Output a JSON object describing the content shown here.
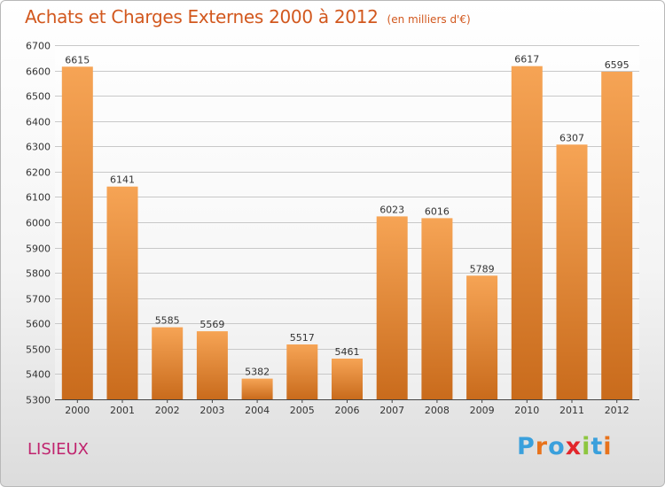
{
  "header": {
    "title": "Achats et Charges Externes 2000 à 2012",
    "unit": "(en milliers d'€)"
  },
  "footer": {
    "city": "LISIEUX",
    "brand": "Proxiti",
    "brand_colors": [
      "#3aa0dc",
      "#e8731c",
      "#3aa0dc",
      "#e2262b",
      "#8dc63f",
      "#3aa0dc",
      "#e8731c"
    ]
  },
  "colors": {
    "bar_light": "#f6a455",
    "bar_dark": "#c96b1c",
    "title": "#d2581e",
    "city": "#c0246e"
  },
  "chart_data": {
    "type": "bar",
    "title": "Achats et Charges Externes 2000 à 2012",
    "categories": [
      "2000",
      "2001",
      "2002",
      "2003",
      "2004",
      "2005",
      "2006",
      "2007",
      "2008",
      "2009",
      "2010",
      "2011",
      "2012"
    ],
    "values": [
      6615,
      6141,
      5585,
      5569,
      5382,
      5517,
      5461,
      6023,
      6016,
      5789,
      6617,
      6307,
      6595
    ],
    "ylim": [
      5300,
      6700
    ],
    "yticks": [
      5300,
      5400,
      5500,
      5600,
      5700,
      5800,
      5900,
      6000,
      6100,
      6200,
      6300,
      6400,
      6500,
      6600,
      6700
    ],
    "xlabel": "",
    "ylabel": "",
    "grid": true,
    "data_labels": true
  }
}
